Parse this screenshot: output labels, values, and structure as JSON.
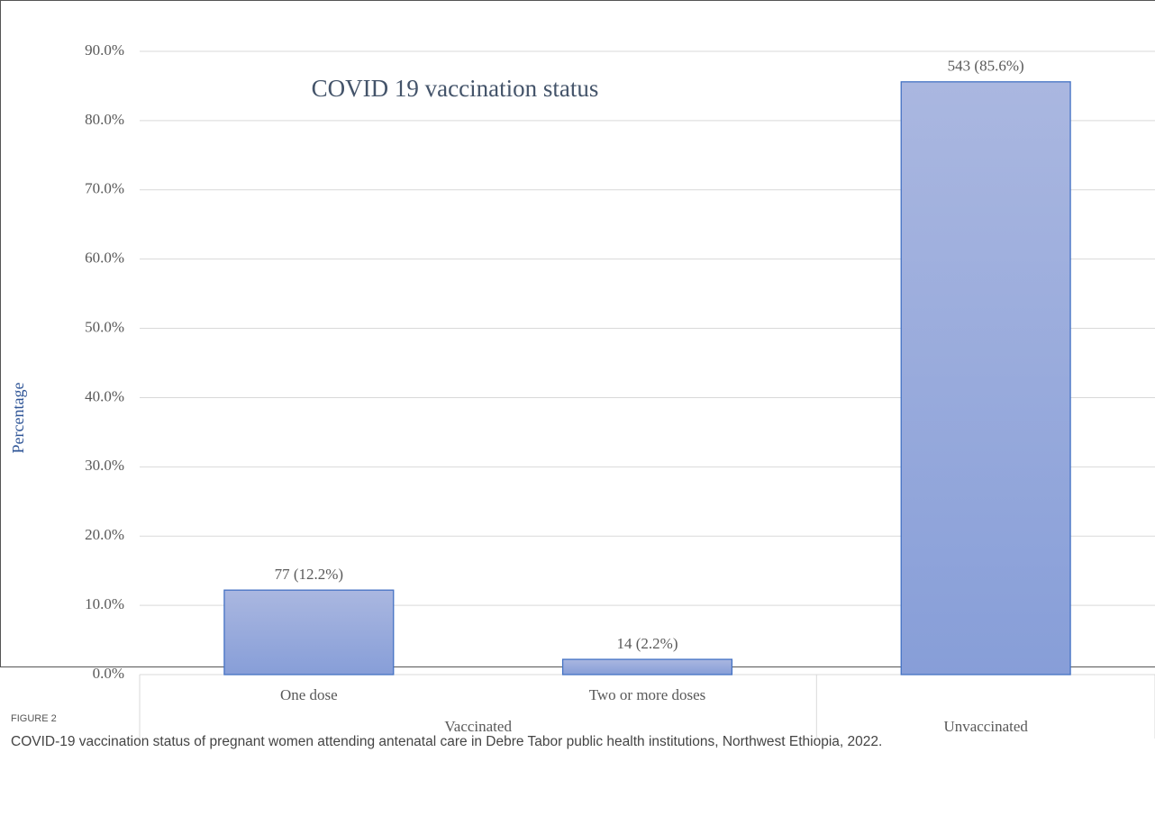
{
  "chart_data": {
    "type": "bar",
    "title": "COVID 19 vaccination status",
    "y_label": "Percentage",
    "categories": [
      "One dose",
      "Two or more doses",
      null
    ],
    "category_groups": [
      "Vaccinated",
      "Vaccinated",
      "Unvaccinated"
    ],
    "values": [
      12.2,
      2.2,
      85.6
    ],
    "value_labels": [
      "77 (12.2%)",
      "14 (2.2%)",
      "543 (85.6%)"
    ],
    "color": "#4472c4",
    "ylim": [
      0,
      90
    ],
    "yticks": [
      {
        "value": 0,
        "label": "0.0%"
      },
      {
        "value": 10,
        "label": "10.0%"
      },
      {
        "value": 20,
        "label": "20.0%"
      },
      {
        "value": 30,
        "label": "30.0%"
      },
      {
        "value": 40,
        "label": "40.0%"
      },
      {
        "value": 50,
        "label": "50.0%"
      },
      {
        "value": 60,
        "label": "60.0%"
      },
      {
        "value": 70,
        "label": "70.0%"
      },
      {
        "value": 80,
        "label": "80.0%"
      },
      {
        "value": 90,
        "label": "90.0%"
      }
    ],
    "grid": true
  },
  "figure": {
    "label": "FIGURE 2",
    "caption": "COVID-19 vaccination status of pregnant women attending antenatal care in Debre Tabor public health institutions, Northwest Ethiopia, 2022."
  }
}
